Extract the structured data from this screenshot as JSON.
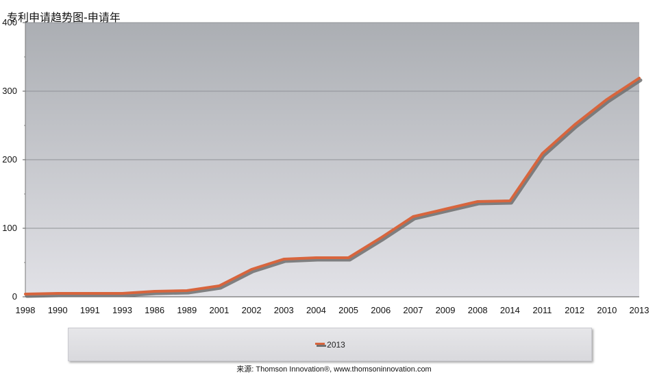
{
  "chart_data": {
    "type": "line",
    "title": "专利申请趋势图-申请年",
    "categories": [
      "1998",
      "1990",
      "1991",
      "1993",
      "1986",
      "1989",
      "2001",
      "2002",
      "2003",
      "2004",
      "2005",
      "2006",
      "2007",
      "2009",
      "2008",
      "2014",
      "2011",
      "2012",
      "2010",
      "2013"
    ],
    "series": [
      {
        "name": "2013",
        "values": [
          4,
          5,
          5,
          5,
          8,
          9,
          16,
          40,
          55,
          57,
          57,
          86,
          117,
          128,
          139,
          140,
          209,
          251,
          288,
          319
        ]
      }
    ],
    "y_ticks": [
      "0",
      "100",
      "200",
      "300",
      "400"
    ],
    "ylim": [
      0,
      400
    ],
    "grid": true,
    "legend_position": "bottom"
  },
  "colors": {
    "line": "#d8653d",
    "line_shadow": "#6e6e6e",
    "plot_top": "#abaeb3",
    "plot_bottom": "#e2e2e7",
    "gridline": "#8f9297"
  },
  "source": "来源: Thomson Innovation®, www.thomsoninnovation.com"
}
